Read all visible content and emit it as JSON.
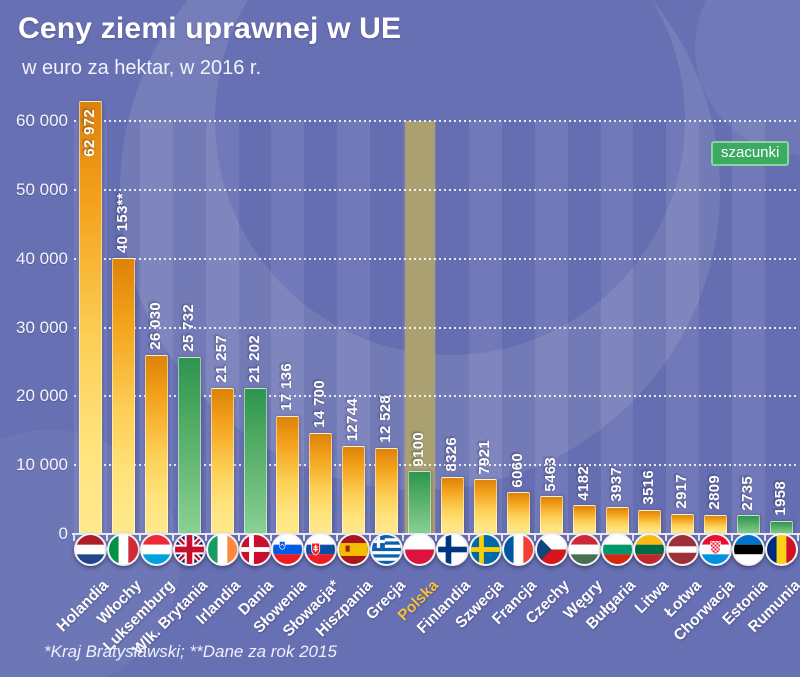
{
  "header": {
    "title": "Ceny ziemi uprawnej w UE",
    "subtitle": "w euro za hektar, w 2016 r."
  },
  "legend": {
    "label": "szacunki"
  },
  "footnote": "*Kraj Bratysławski; **Dane za rok 2015",
  "colors": {
    "background": "#6770b3",
    "bar_default_top": "#dd820a",
    "bar_default_bottom": "#ffe98f",
    "bar_estimate_top": "#2d9451",
    "bar_estimate_bottom": "#8ad295",
    "highlight_band": "#aba070",
    "legend_badge": "#3cab61",
    "highlight_label": "#f2c237"
  },
  "chart_data": {
    "type": "bar",
    "title": "Ceny ziemi uprawnej w UE",
    "subtitle": "w euro za hektar, w 2016 r.",
    "ylabel": "",
    "xlabel": "",
    "ylim": [
      0,
      63000
    ],
    "grid": "dashed horizontal, white",
    "legend_position": "top-right",
    "legend_entries": [
      {
        "label": "szacunki",
        "meaning": "green bars = estimates"
      }
    ],
    "yticks": [
      {
        "value": 0,
        "label": "0"
      },
      {
        "value": 10000,
        "label": "10 000"
      },
      {
        "value": 20000,
        "label": "20 000"
      },
      {
        "value": 30000,
        "label": "30 000"
      },
      {
        "value": 40000,
        "label": "40 000"
      },
      {
        "value": 50000,
        "label": "50 000"
      },
      {
        "value": 60000,
        "label": "60 000"
      }
    ],
    "categories": [
      {
        "label": "Holandia",
        "value": 62972,
        "value_label": "62 972",
        "estimate": false,
        "highlight": false,
        "label_inside": true,
        "flag": "nl"
      },
      {
        "label": "Włochy",
        "value": 40153,
        "value_label": "40 153**",
        "estimate": false,
        "highlight": false,
        "label_inside": false,
        "flag": "it"
      },
      {
        "label": "Luksemburg",
        "value": 26030,
        "value_label": "26 030",
        "estimate": false,
        "highlight": false,
        "label_inside": false,
        "flag": "lu"
      },
      {
        "label": "Wlk. Brytania",
        "value": 25732,
        "value_label": "25 732",
        "estimate": true,
        "highlight": false,
        "label_inside": false,
        "flag": "gb"
      },
      {
        "label": "Irlandia",
        "value": 21257,
        "value_label": "21 257",
        "estimate": false,
        "highlight": false,
        "label_inside": false,
        "flag": "ie"
      },
      {
        "label": "Dania",
        "value": 21202,
        "value_label": "21 202",
        "estimate": true,
        "highlight": false,
        "label_inside": false,
        "flag": "dk"
      },
      {
        "label": "Słowenia",
        "value": 17136,
        "value_label": "17 136",
        "estimate": false,
        "highlight": false,
        "label_inside": false,
        "flag": "si"
      },
      {
        "label": "Słowacja*",
        "value": 14700,
        "value_label": "14 700",
        "estimate": false,
        "highlight": false,
        "label_inside": false,
        "flag": "sk"
      },
      {
        "label": "Hiszpania",
        "value": 12744,
        "value_label": "12744",
        "estimate": false,
        "highlight": false,
        "label_inside": false,
        "flag": "es"
      },
      {
        "label": "Grecja",
        "value": 12528,
        "value_label": "12 528",
        "estimate": false,
        "highlight": false,
        "label_inside": false,
        "flag": "gr"
      },
      {
        "label": "Polska",
        "value": 9100,
        "value_label": "9100",
        "estimate": true,
        "highlight": true,
        "label_inside": false,
        "flag": "pl"
      },
      {
        "label": "Finlandia",
        "value": 8326,
        "value_label": "8326",
        "estimate": false,
        "highlight": false,
        "label_inside": false,
        "flag": "fi"
      },
      {
        "label": "Szwecja",
        "value": 7921,
        "value_label": "7921",
        "estimate": false,
        "highlight": false,
        "label_inside": false,
        "flag": "se"
      },
      {
        "label": "Francja",
        "value": 6060,
        "value_label": "6060",
        "estimate": false,
        "highlight": false,
        "label_inside": false,
        "flag": "fr"
      },
      {
        "label": "Czechy",
        "value": 5463,
        "value_label": "5463",
        "estimate": false,
        "highlight": false,
        "label_inside": false,
        "flag": "cz"
      },
      {
        "label": "Węgry",
        "value": 4182,
        "value_label": "4182",
        "estimate": false,
        "highlight": false,
        "label_inside": false,
        "flag": "hu"
      },
      {
        "label": "Bułgaria",
        "value": 3937,
        "value_label": "3937",
        "estimate": false,
        "highlight": false,
        "label_inside": false,
        "flag": "bg"
      },
      {
        "label": "Litwa",
        "value": 3516,
        "value_label": "3516",
        "estimate": false,
        "highlight": false,
        "label_inside": false,
        "flag": "lt"
      },
      {
        "label": "Łotwa",
        "value": 2917,
        "value_label": "2917",
        "estimate": false,
        "highlight": false,
        "label_inside": false,
        "flag": "lv"
      },
      {
        "label": "Chorwacja",
        "value": 2809,
        "value_label": "2809",
        "estimate": false,
        "highlight": false,
        "label_inside": false,
        "flag": "hr"
      },
      {
        "label": "Estonia",
        "value": 2735,
        "value_label": "2735",
        "estimate": true,
        "highlight": false,
        "label_inside": false,
        "flag": "ee"
      },
      {
        "label": "Rumunia",
        "value": 1958,
        "value_label": "1958",
        "estimate": true,
        "highlight": false,
        "label_inside": false,
        "flag": "ro"
      }
    ]
  }
}
